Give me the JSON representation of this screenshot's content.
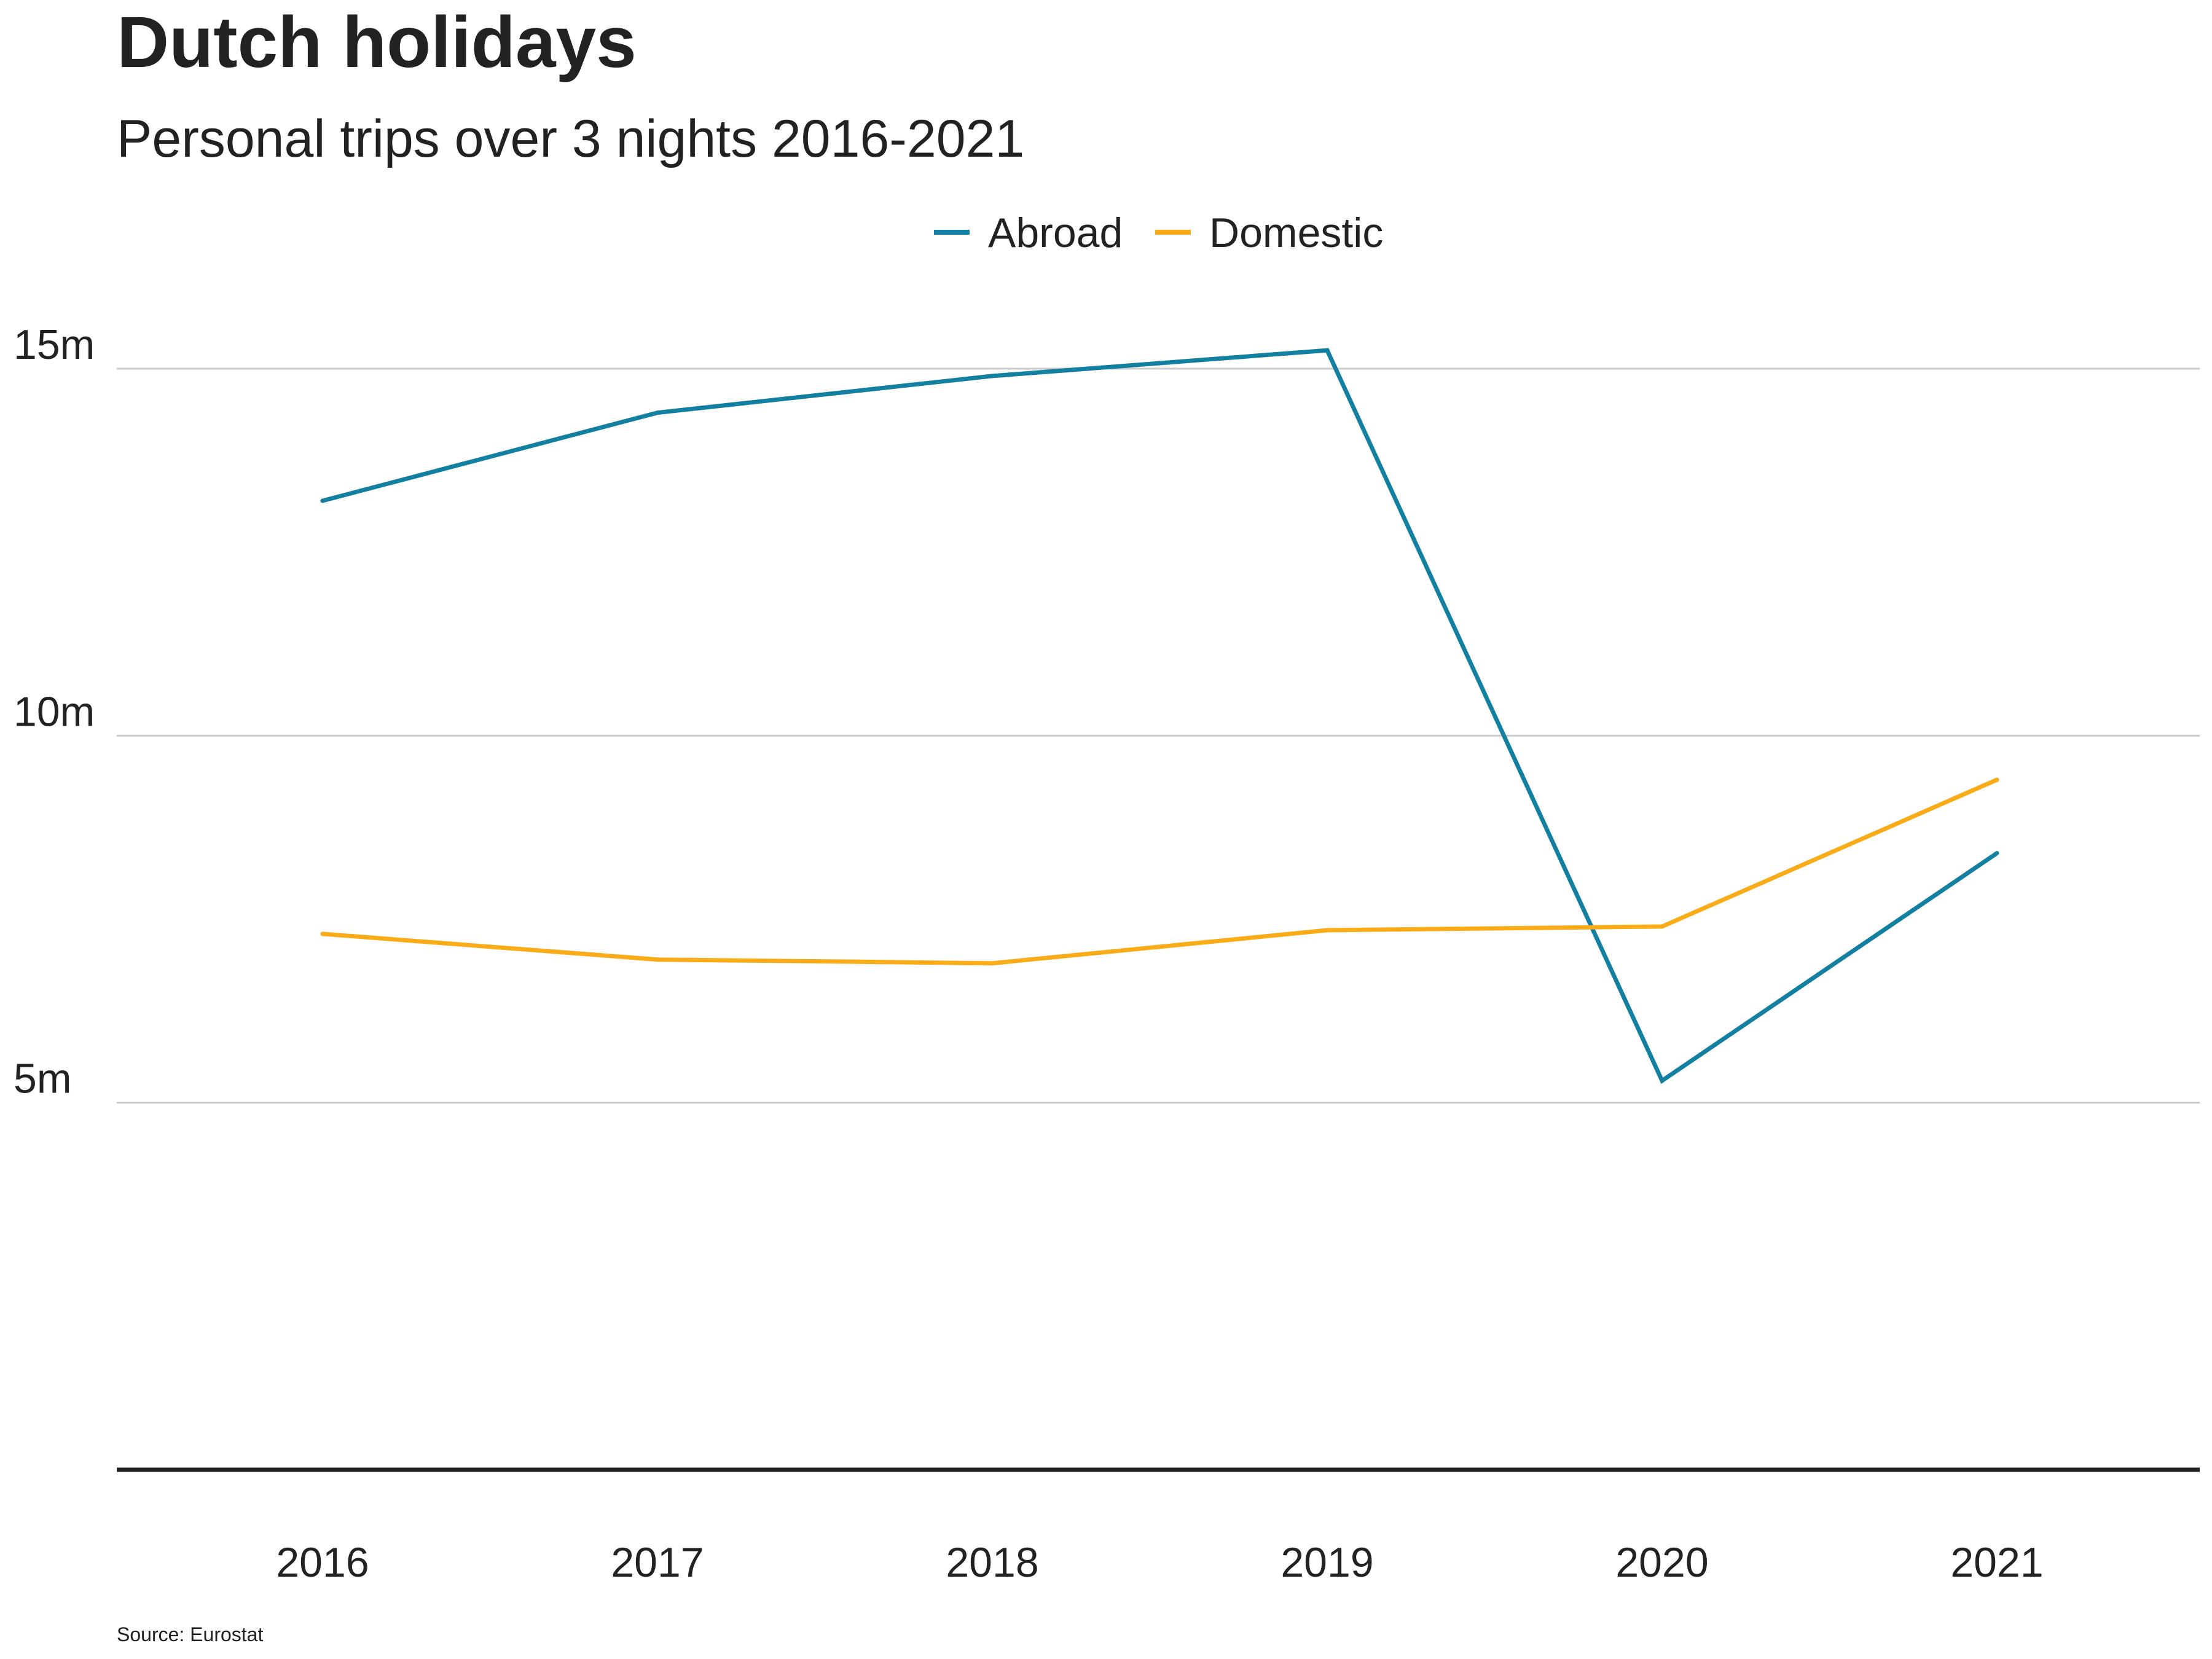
{
  "chart_data": {
    "type": "line",
    "title": "Dutch holidays",
    "subtitle": "Personal trips over 3 nights 2016-2021",
    "source": "Source: Eurostat",
    "xlabel": "",
    "ylabel": "",
    "x": [
      2016,
      2017,
      2018,
      2019,
      2020,
      2021
    ],
    "x_tick_labels": [
      "2016",
      "2017",
      "2018",
      "2019",
      "2020",
      "2021"
    ],
    "ylim": [
      0,
      15.5
    ],
    "y_ticks": [
      5,
      10,
      15
    ],
    "y_tick_labels": [
      "5m",
      "10m",
      "15m"
    ],
    "grid": true,
    "legend_position": "top-center",
    "series": [
      {
        "name": "Abroad",
        "color": "#1380A1",
        "values": [
          13.2,
          14.4,
          14.9,
          15.25,
          5.3,
          8.4
        ]
      },
      {
        "name": "Domestic",
        "color": "#FAAB18",
        "values": [
          7.3,
          6.95,
          6.9,
          7.35,
          7.4,
          9.4
        ]
      }
    ]
  }
}
